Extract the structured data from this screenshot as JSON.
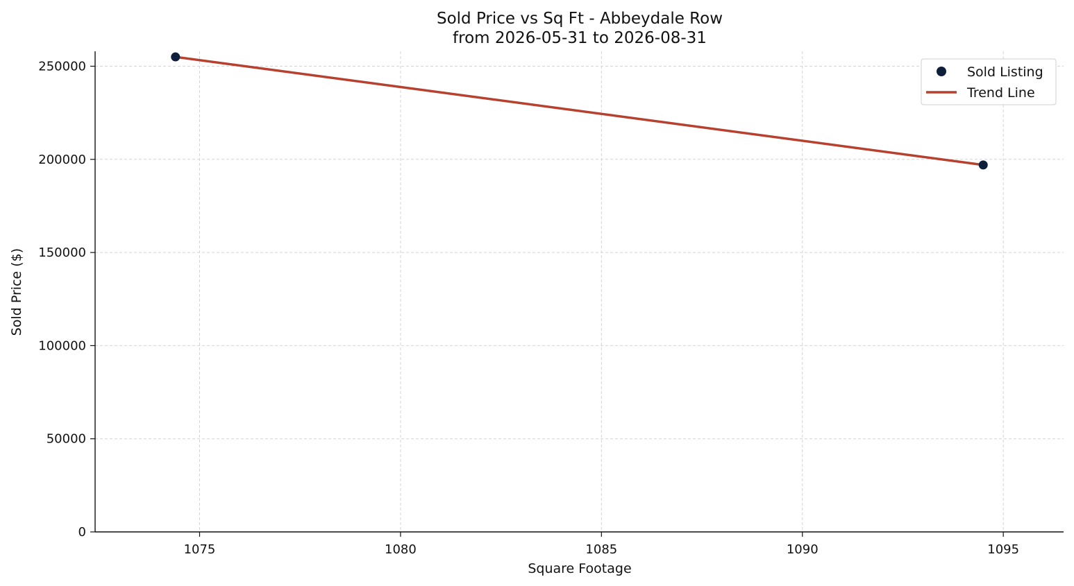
{
  "chart_data": {
    "type": "scatter",
    "title": "Sold Price vs Sq Ft - Abbeydale Row",
    "subtitle": "from 2026-05-31 to 2026-08-31",
    "xlabel": "Square Footage",
    "ylabel": "Sold Price ($)",
    "xlim": [
      1072.4,
      1096.5
    ],
    "ylim": [
      0,
      258000
    ],
    "xticks": [
      1075,
      1080,
      1085,
      1090,
      1095
    ],
    "yticks": [
      0,
      50000,
      100000,
      150000,
      200000,
      250000
    ],
    "grid": true,
    "legend": {
      "position": "top-right",
      "entries": [
        {
          "label": "Sold Listing",
          "kind": "point",
          "color": "#0d1f3a"
        },
        {
          "label": "Trend Line",
          "kind": "line",
          "color": "#b7402f"
        }
      ]
    },
    "series": [
      {
        "name": "Sold Listing",
        "kind": "scatter",
        "color": "#0d1f3a",
        "points": [
          {
            "x": 1074.4,
            "y": 255000
          },
          {
            "x": 1094.5,
            "y": 197000
          }
        ]
      },
      {
        "name": "Trend Line",
        "kind": "line",
        "color": "#b7402f",
        "points": [
          {
            "x": 1074.4,
            "y": 255000
          },
          {
            "x": 1094.5,
            "y": 197000
          }
        ]
      }
    ]
  }
}
